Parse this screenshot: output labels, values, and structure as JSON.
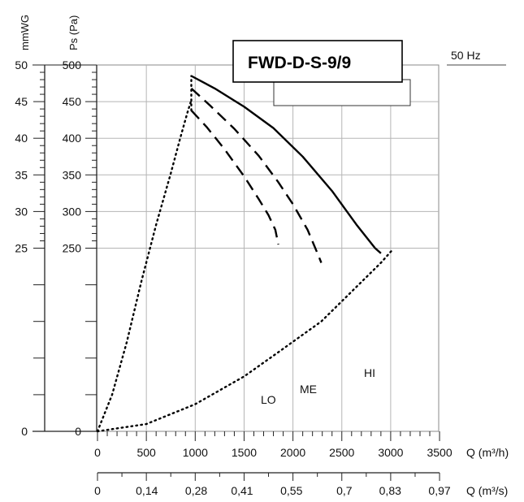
{
  "chart_data": {
    "type": "line",
    "title": "FWD-D-S-9/9",
    "frequency_label": "50 Hz",
    "x_axis": {
      "label": "Q (m³/h)",
      "range": [
        0,
        3500
      ],
      "ticks": [
        0,
        500,
        1000,
        1500,
        2000,
        2500,
        3000,
        3500
      ],
      "tick_labels": [
        "0",
        "500",
        "1000",
        "1500",
        "2000",
        "2500",
        "3000",
        "3500"
      ]
    },
    "x2_axis": {
      "label": "Q (m³/s)",
      "range": [
        0,
        0.97
      ],
      "ticks": [
        0,
        0.14,
        0.28,
        0.41,
        0.55,
        0.7,
        0.83,
        0.97
      ],
      "tick_labels": [
        "0",
        "0,14",
        "0,28",
        "0,41",
        "0,55",
        "0,7",
        "0,83",
        "0,97"
      ]
    },
    "y_axis": {
      "label": "Ps (Pa)",
      "range": [
        0,
        500
      ],
      "ticks": [
        0,
        250,
        300,
        350,
        400,
        450,
        500
      ],
      "tick_labels": [
        "0",
        "250",
        "300",
        "350",
        "400",
        "450",
        "500"
      ]
    },
    "y2_axis": {
      "label": "mmWG",
      "range": [
        0,
        50
      ],
      "ticks": [
        0,
        25,
        30,
        35,
        40,
        45,
        50
      ],
      "tick_labels": [
        "0",
        "25",
        "30",
        "35",
        "40",
        "45",
        "50"
      ]
    },
    "grid": true,
    "series": [
      {
        "name": "HI",
        "style": "solid",
        "x": [
          960,
          1200,
          1500,
          1800,
          2100,
          2400,
          2650,
          2840,
          2900
        ],
        "y": [
          485,
          468,
          443,
          414,
          375,
          328,
          282,
          250,
          243
        ]
      },
      {
        "name": "ME",
        "style": "dashed",
        "x": [
          960,
          1150,
          1400,
          1650,
          1850,
          2000,
          2150,
          2260,
          2290
        ],
        "y": [
          468,
          445,
          413,
          376,
          340,
          310,
          275,
          240,
          230
        ]
      },
      {
        "name": "LO",
        "style": "dashed",
        "x": [
          960,
          1120,
          1300,
          1500,
          1650,
          1750,
          1820,
          1850
        ],
        "y": [
          438,
          415,
          385,
          348,
          317,
          295,
          275,
          255
        ]
      },
      {
        "name": "",
        "style": "dotted",
        "x": [
          0,
          150,
          300,
          450,
          600,
          750,
          850,
          920,
          960
        ],
        "y": [
          0,
          50,
          122,
          205,
          282,
          352,
          402,
          435,
          452
        ]
      },
      {
        "name": "",
        "style": "dotted",
        "x": [
          0,
          500,
          1000,
          1500,
          1850,
          2290,
          2900,
          3020
        ],
        "y": [
          0,
          10,
          37,
          75,
          108,
          150,
          230,
          248
        ]
      }
    ],
    "vertical_segment": {
      "x": 960,
      "y": [
        438,
        485
      ]
    }
  }
}
